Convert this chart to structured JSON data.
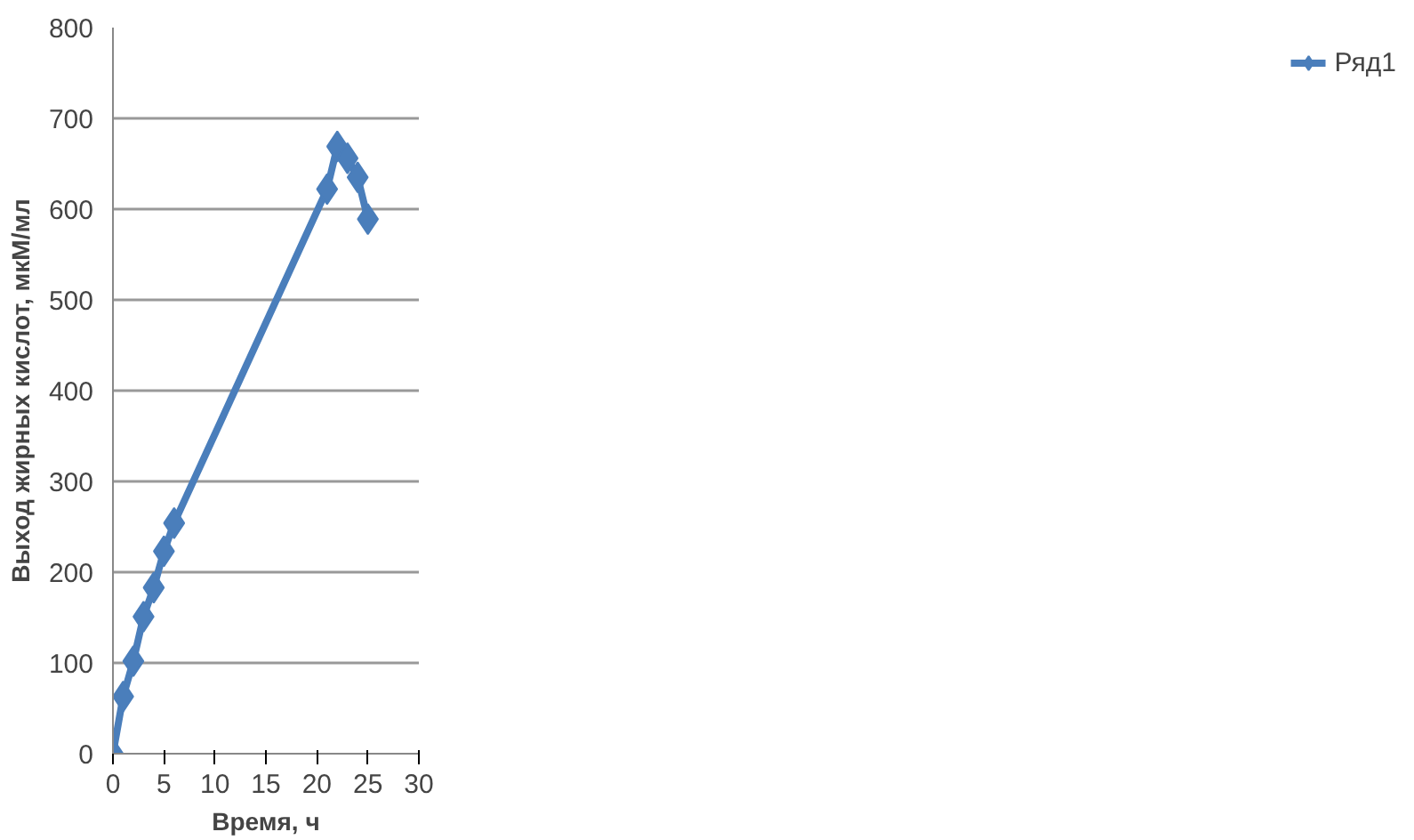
{
  "chart_data": {
    "type": "line",
    "xlabel": "Время, ч",
    "ylabel": "Выход жирных кислот, мкМ/мл",
    "x": [
      0,
      1,
      2,
      3,
      4,
      5,
      6,
      21,
      22,
      23,
      24,
      25
    ],
    "series": [
      {
        "name": "Ряд1",
        "color": "#4a7ebb",
        "values": [
          0,
          63,
          102,
          151,
          183,
          223,
          254,
          622,
          669,
          656,
          635,
          589
        ]
      }
    ],
    "xlim": [
      0,
      30
    ],
    "xticks": [
      0,
      5,
      10,
      15,
      20,
      25,
      30
    ],
    "ylim": [
      0,
      800
    ],
    "yticks": [
      0,
      100,
      200,
      300,
      400,
      500,
      600,
      700,
      800
    ],
    "grid": "y",
    "legend": "right",
    "marker": "diamond",
    "line_style": "solid"
  }
}
